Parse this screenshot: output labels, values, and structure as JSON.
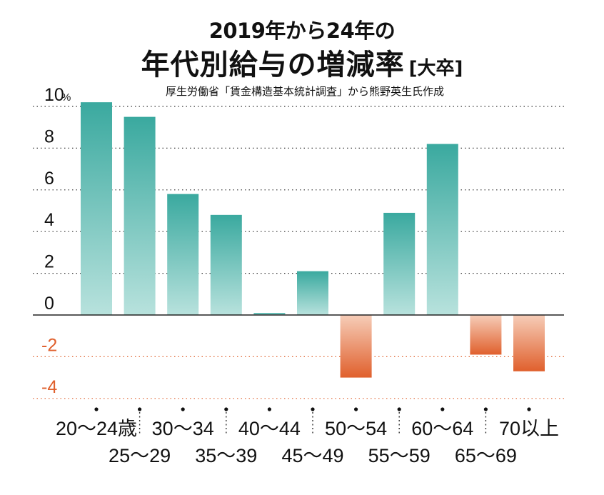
{
  "title_line1": "2019年から24年の",
  "title_line2": "年代別給与の増減率",
  "title_tag": "[大卒]",
  "source": "厚生労働省「賃金構造基本統計調査」から熊野英生氏作成",
  "colors": {
    "positive": "#3aa99f",
    "negative": "#e0602d"
  },
  "chart_data": {
    "type": "bar",
    "ylabel": "%",
    "ylim": [
      -4,
      10
    ],
    "yticks": [
      10,
      8,
      6,
      4,
      2,
      0,
      -2,
      -4
    ],
    "ytick_labels": [
      "10",
      "8",
      "6",
      "4",
      "2",
      "0",
      "-2",
      "-4"
    ],
    "y_unit": "%",
    "grid": true,
    "categories": [
      "20～24歳",
      "25～29",
      "30～34",
      "35～39",
      "40～44",
      "45～49",
      "50～54",
      "55～59",
      "60～64",
      "65～69",
      "70以上"
    ],
    "values": [
      10.2,
      9.5,
      5.8,
      4.8,
      0.1,
      2.1,
      -3.0,
      4.9,
      8.2,
      -1.9,
      -2.7
    ]
  }
}
